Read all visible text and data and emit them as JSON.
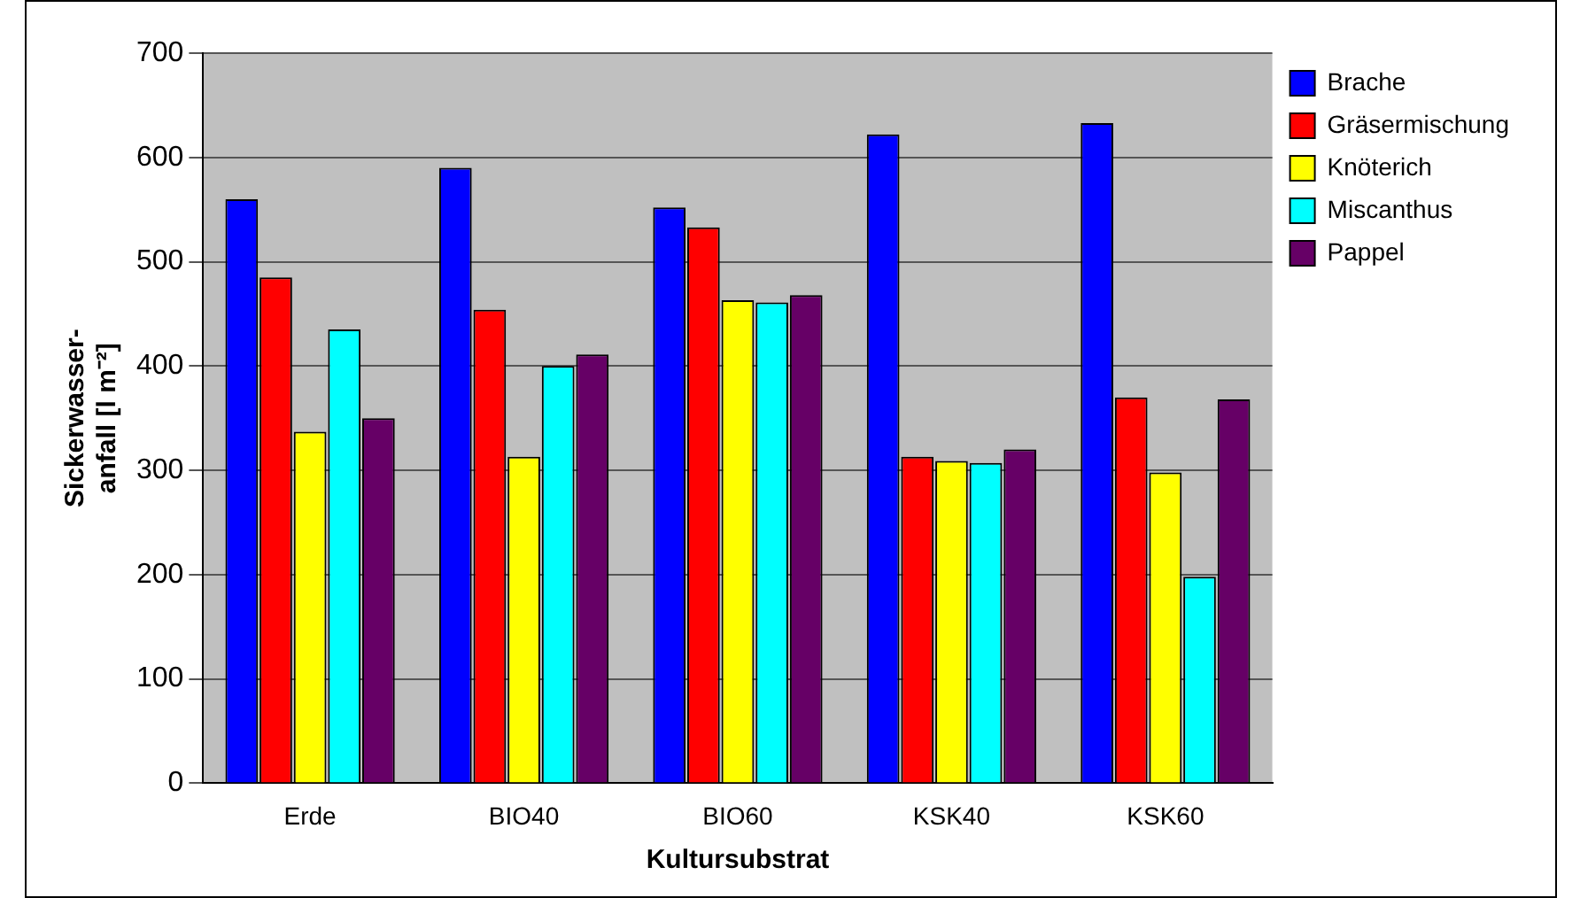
{
  "chart_data": {
    "type": "bar",
    "xlabel": "Kultursubstrat",
    "ylabel": "Sickerwasser-anfall [l m⁻²]",
    "categories": [
      "Erde",
      "BIO40",
      "BIO60",
      "KSK40",
      "KSK60"
    ],
    "series": [
      {
        "name": "Brache",
        "color": "#0000ff",
        "values": [
          560,
          590,
          552,
          622,
          633
        ]
      },
      {
        "name": "Gräsermischung",
        "color": "#ff0000",
        "values": [
          485,
          454,
          533,
          313,
          370
        ]
      },
      {
        "name": "Knöterich",
        "color": "#ffff00",
        "values": [
          337,
          313,
          463,
          309,
          298
        ]
      },
      {
        "name": "Miscanthus",
        "color": "#00ffff",
        "values": [
          435,
          400,
          461,
          307,
          198
        ]
      },
      {
        "name": "Pappel",
        "color": "#660066",
        "values": [
          350,
          411,
          468,
          320,
          368
        ]
      }
    ],
    "ylim": [
      0,
      700
    ],
    "yticks": [
      0,
      100,
      200,
      300,
      400,
      500,
      600,
      700
    ],
    "grid": "y",
    "legend": "top right"
  }
}
